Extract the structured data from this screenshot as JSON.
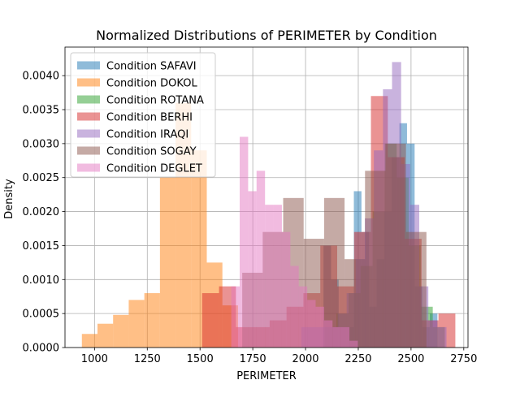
{
  "chart_data": {
    "type": "histogram",
    "title": "Normalized Distributions of PERIMETER by Condition",
    "xlabel": "PERIMETER",
    "ylabel": "Density",
    "xlim": [
      860,
      2770
    ],
    "ylim": [
      0,
      0.00442
    ],
    "xticks": [
      1000,
      1250,
      1500,
      1750,
      2000,
      2250,
      2500,
      2750
    ],
    "xtick_labels": [
      "1000",
      "1250",
      "1500",
      "1750",
      "2000",
      "2250",
      "2500",
      "2750"
    ],
    "yticks": [
      0,
      0.0005,
      0.001,
      0.0015,
      0.002,
      0.0025,
      0.003,
      0.0035,
      0.004
    ],
    "ytick_labels": [
      "0.0000",
      "0.0005",
      "0.0010",
      "0.0015",
      "0.0020",
      "0.0025",
      "0.0030",
      "0.0035",
      "0.0040"
    ],
    "grid": true,
    "legend_position": "top-left",
    "alpha": 0.5,
    "series": [
      {
        "name": "Condition SAFAVI",
        "color": "#1f77b4",
        "edges": [
          2085,
          2121,
          2157,
          2193,
          2229,
          2265,
          2301,
          2337,
          2373,
          2409,
          2445,
          2481,
          2517,
          2553,
          2589,
          2625
        ],
        "values": [
          0.0015,
          0.001,
          0.0003,
          0.0003,
          0.0023,
          0.0017,
          0.0006,
          0.0013,
          0.002,
          0.0028,
          0.0033,
          0.003,
          0.0009,
          0.0003,
          0.0005
        ]
      },
      {
        "name": "Condition DOKOL",
        "color": "#ff7f0e",
        "edges": [
          940,
          1014,
          1088,
          1162,
          1236,
          1310,
          1384,
          1458,
          1532,
          1606,
          1680
        ],
        "values": [
          0.0002,
          0.00035,
          0.00048,
          0.0007,
          0.0008,
          0.0025,
          0.0036,
          0.0029,
          0.00125,
          0.00062
        ]
      },
      {
        "name": "Condition ROTANA",
        "color": "#2ca02c",
        "edges": [
          2090,
          2147,
          2204,
          2261,
          2318,
          2375,
          2432,
          2489,
          2546,
          2603,
          2660
        ],
        "values": [
          0.0003,
          0.0005,
          0.0008,
          0.0012,
          0.002,
          0.003,
          0.0025,
          0.0015,
          0.0006,
          0.0003
        ]
      },
      {
        "name": "Condition BERHI",
        "color": "#d62728",
        "edges": [
          1510,
          1590,
          1670,
          1750,
          1830,
          1910,
          1990,
          2070,
          2150,
          2230,
          2310,
          2390,
          2470,
          2550,
          2630,
          2710
        ],
        "values": [
          0.0008,
          0.0009,
          0.0003,
          0.0003,
          0.0004,
          0.0006,
          0.0008,
          0.0015,
          0.0009,
          0.0017,
          0.0037,
          0.0028,
          0.0016,
          0.0004,
          0.0005
        ]
      },
      {
        "name": "Condition IRAQI",
        "color": "#9467bd",
        "edges": [
          1980,
          2023,
          2066,
          2109,
          2152,
          2195,
          2238,
          2281,
          2324,
          2367,
          2410,
          2453,
          2496,
          2539,
          2582,
          2625,
          2668
        ],
        "values": [
          0.0003,
          0.0003,
          0.0003,
          0.0003,
          0.0005,
          0.0008,
          0.0013,
          0.0019,
          0.0029,
          0.0038,
          0.0042,
          0.0027,
          0.0021,
          0.0009,
          0.0004,
          0.0003
        ]
      },
      {
        "name": "Condition SOGAY",
        "color": "#8c564b",
        "edges": [
          1700,
          1797,
          1894,
          1991,
          2088,
          2185,
          2282,
          2379,
          2476,
          2573
        ],
        "values": [
          0.0011,
          0.0017,
          0.0022,
          0.0016,
          0.0022,
          0.0013,
          0.0026,
          0.003,
          0.0017
        ]
      },
      {
        "name": "Condition DEGLET",
        "color": "#e377c2",
        "edges": [
          1648,
          1688,
          1728,
          1768,
          1808,
          1848,
          1888,
          1928,
          1968,
          2008,
          2048,
          2088,
          2128,
          2168,
          2208,
          2248
        ],
        "values": [
          0.0009,
          0.0031,
          0.0023,
          0.0026,
          0.0021,
          0.0021,
          0.0017,
          0.0012,
          0.0009,
          0.0007,
          0.0006,
          0.0004,
          0.0003,
          0.0003,
          0.0001
        ]
      }
    ]
  }
}
